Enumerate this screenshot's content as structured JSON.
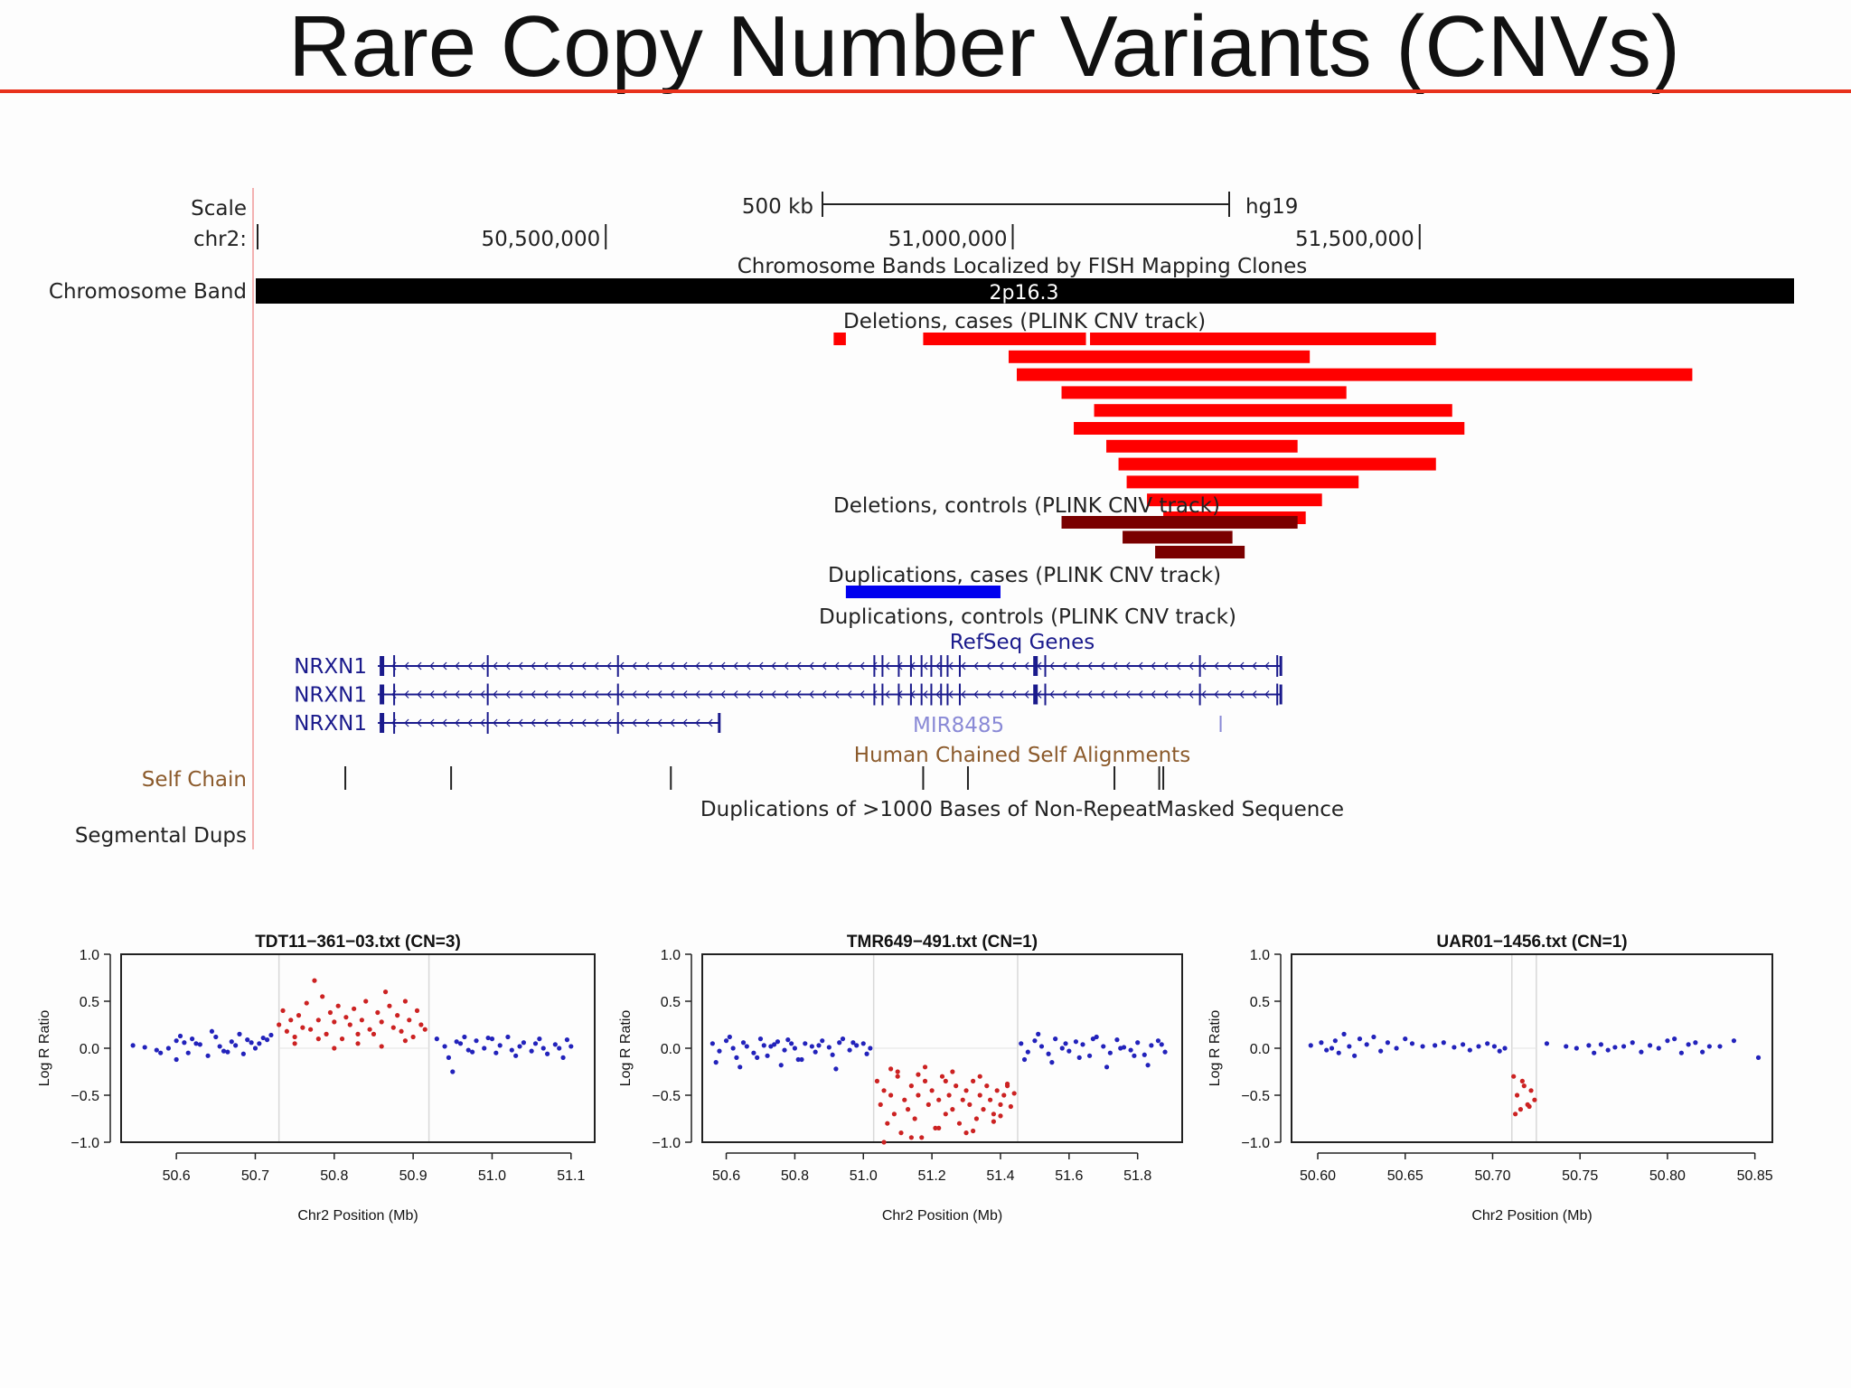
{
  "slide": {
    "title": "Rare Copy Number Variants (CNVs)",
    "accent_color": "#e8321c"
  },
  "genome_browser": {
    "assembly": "hg19",
    "scale_label": "Scale",
    "scale_bar_label": "500 kb",
    "chrom_label": "chr2:",
    "positions": [
      "50,500,000",
      "51,000,000",
      "51,500,000"
    ],
    "view_start_bp": 50070000,
    "view_end_bp": 51960000,
    "tracks": {
      "bands": {
        "side_label": "Chromosome Band",
        "title": "Chromosome Bands Localized by FISH Mapping Clones",
        "band_name": "2p16.3",
        "color": "#000000"
      },
      "del_cases": {
        "title": "Deletions, cases (PLINK CNV track)",
        "color": "#ff0000",
        "intervals_bp": [
          [
            50780000,
            50795000
          ],
          [
            50890000,
            51090000
          ],
          [
            51095000,
            51520000
          ],
          [
            50995000,
            51365000
          ],
          [
            51005000,
            51835000
          ],
          [
            51060000,
            51410000
          ],
          [
            51100000,
            51540000
          ],
          [
            51075000,
            51555000
          ],
          [
            51115000,
            51350000
          ],
          [
            51130000,
            51520000
          ],
          [
            51140000,
            51425000
          ],
          [
            51165000,
            51380000
          ],
          [
            51185000,
            51360000
          ]
        ]
      },
      "del_controls": {
        "title": "Deletions, controls (PLINK CNV track)",
        "color": "#7a0000",
        "intervals_bp": [
          [
            51060000,
            51350000
          ],
          [
            51135000,
            51270000
          ],
          [
            51175000,
            51285000
          ]
        ]
      },
      "dup_cases": {
        "title": "Duplications, cases (PLINK CNV track)",
        "color": "#0000ee",
        "intervals_bp": [
          [
            50795000,
            50985000
          ]
        ]
      },
      "dup_controls": {
        "title": "Duplications, controls (PLINK CNV track)"
      },
      "refseq": {
        "title": "RefSeq Genes",
        "color": "#1a1a8c",
        "genes": [
          {
            "name": "NRXN1",
            "start_bp": 50220000,
            "end_bp": 51330000
          },
          {
            "name": "NRXN1",
            "start_bp": 50220000,
            "end_bp": 51330000
          },
          {
            "name": "NRXN1",
            "start_bp": 50220000,
            "end_bp": 50640000
          }
        ],
        "mirna": {
          "name": "MIR8485",
          "position_bp": 51130000,
          "color": "#8a8ad6"
        }
      },
      "self_chain": {
        "side_label": "Self Chain",
        "title": "Human Chained Self Alignments",
        "color": "#8b5a2b",
        "positions_bp": [
          50180000,
          50310000,
          50580000,
          50890000,
          50945000,
          51125000,
          51180000,
          51185000
        ]
      },
      "seg_dups": {
        "side_label": "Segmental Dups",
        "title": "Duplications of >1000 Bases of Non-RepeatMasked Sequence"
      }
    }
  },
  "chart_data": [
    {
      "type": "scatter",
      "title": "TDT11−361−03.txt (CN=3)",
      "xlabel": "Chr2 Position (Mb)",
      "ylabel": "Log R Ratio",
      "xlim": [
        50.53,
        51.13
      ],
      "ylim": [
        -1.0,
        1.0
      ],
      "xticks": [
        "50.6",
        "50.7",
        "50.8",
        "50.9",
        "51.0",
        "51.1"
      ],
      "yticks": [
        "1.0",
        "0.5",
        "0.0",
        "−0.5",
        "−1.0"
      ],
      "cnv_region": [
        50.73,
        50.92
      ],
      "series": [
        {
          "color": "#2222bb",
          "x": [
            50.545,
            50.56,
            50.575,
            50.59,
            50.6,
            50.61,
            50.615,
            50.62,
            50.63,
            50.64,
            50.65,
            50.655,
            50.66,
            50.67,
            50.68,
            50.685,
            50.69,
            50.7,
            50.705,
            50.71,
            50.72,
            50.6,
            50.625,
            50.645,
            50.675,
            50.695,
            50.715,
            50.58,
            50.605,
            50.665,
            50.93,
            50.94,
            50.945,
            50.95,
            50.96,
            50.965,
            50.97,
            50.98,
            50.99,
            51.0,
            51.005,
            51.01,
            51.02,
            51.03,
            51.035,
            51.04,
            51.05,
            51.06,
            51.065,
            51.07,
            51.08,
            51.09,
            51.095,
            51.1,
            50.955,
            50.975,
            50.995,
            51.025,
            51.055,
            51.085
          ],
          "y": [
            0.03,
            0.01,
            -0.02,
            0.0,
            0.08,
            0.06,
            -0.05,
            0.1,
            0.04,
            -0.08,
            0.12,
            0.02,
            -0.03,
            0.07,
            0.15,
            -0.06,
            0.09,
            0.0,
            0.05,
            0.11,
            0.14,
            -0.12,
            0.05,
            0.18,
            0.03,
            0.06,
            0.09,
            -0.05,
            0.13,
            -0.04,
            0.1,
            0.02,
            -0.1,
            -0.25,
            0.05,
            0.12,
            -0.02,
            0.08,
            0.0,
            0.1,
            -0.05,
            0.03,
            0.12,
            -0.08,
            0.02,
            0.06,
            -0.03,
            0.1,
            0.0,
            -0.06,
            0.04,
            -0.1,
            0.09,
            0.02,
            0.07,
            -0.04,
            0.11,
            -0.02,
            0.05,
            0.0
          ]
        },
        {
          "color": "#cc2222",
          "x": [
            50.73,
            50.735,
            50.74,
            50.745,
            50.75,
            50.755,
            50.76,
            50.765,
            50.77,
            50.775,
            50.78,
            50.785,
            50.79,
            50.795,
            50.8,
            50.805,
            50.81,
            50.815,
            50.82,
            50.825,
            50.83,
            50.835,
            50.84,
            50.845,
            50.85,
            50.855,
            50.86,
            50.865,
            50.87,
            50.875,
            50.88,
            50.885,
            50.89,
            50.895,
            50.9,
            50.905,
            50.91,
            50.915,
            50.75,
            50.78,
            50.8,
            50.83,
            50.86,
            50.89
          ],
          "y": [
            0.25,
            0.4,
            0.18,
            0.3,
            0.12,
            0.35,
            0.22,
            0.48,
            0.2,
            0.72,
            0.3,
            0.55,
            0.15,
            0.38,
            0.28,
            0.45,
            0.1,
            0.33,
            0.25,
            0.42,
            0.05,
            0.3,
            0.5,
            0.2,
            0.15,
            0.38,
            0.28,
            0.6,
            0.45,
            0.22,
            0.35,
            0.18,
            0.5,
            0.3,
            0.12,
            0.4,
            0.25,
            0.2,
            0.05,
            0.1,
            0.0,
            0.15,
            0.02,
            0.08
          ]
        }
      ]
    },
    {
      "type": "scatter",
      "title": "TMR649−491.txt (CN=1)",
      "xlabel": "Chr2 Position (Mb)",
      "ylabel": "Log R Ratio",
      "xlim": [
        50.53,
        51.93
      ],
      "ylim": [
        -1.0,
        1.0
      ],
      "xticks": [
        "50.6",
        "50.8",
        "51.0",
        "51.2",
        "51.4",
        "51.6",
        "51.8"
      ],
      "yticks": [
        "1.0",
        "0.5",
        "0.0",
        "−0.5",
        "−1.0"
      ],
      "cnv_region": [
        51.03,
        51.45
      ],
      "series": [
        {
          "color": "#2222bb",
          "x": [
            50.56,
            50.58,
            50.6,
            50.62,
            50.63,
            50.65,
            50.66,
            50.68,
            50.7,
            50.71,
            50.72,
            50.74,
            50.75,
            50.77,
            50.78,
            50.8,
            50.81,
            50.83,
            50.85,
            50.86,
            50.88,
            50.9,
            50.91,
            50.93,
            50.94,
            50.96,
            50.98,
            51.0,
            51.01,
            51.02,
            50.57,
            50.61,
            50.64,
            50.69,
            50.73,
            50.76,
            50.79,
            50.82,
            50.87,
            50.92,
            50.97,
            51.46,
            51.48,
            51.5,
            51.52,
            51.54,
            51.56,
            51.58,
            51.6,
            51.62,
            51.64,
            51.66,
            51.68,
            51.7,
            51.72,
            51.74,
            51.76,
            51.78,
            51.8,
            51.82,
            51.84,
            51.86,
            51.88,
            51.47,
            51.51,
            51.55,
            51.59,
            51.63,
            51.67,
            51.71,
            51.75,
            51.79,
            51.83,
            51.87
          ],
          "y": [
            0.05,
            -0.03,
            0.08,
            0.0,
            -0.1,
            0.06,
            0.02,
            -0.05,
            0.1,
            0.03,
            -0.08,
            0.04,
            0.07,
            -0.02,
            0.09,
            0.0,
            -0.12,
            0.05,
            0.02,
            -0.04,
            0.08,
            0.01,
            -0.07,
            0.06,
            0.1,
            -0.02,
            0.03,
            0.05,
            -0.06,
            0.0,
            -0.15,
            0.12,
            -0.2,
            -0.1,
            0.02,
            -0.18,
            0.05,
            -0.12,
            0.03,
            -0.22,
            0.06,
            0.05,
            -0.04,
            0.08,
            0.02,
            -0.06,
            0.1,
            0.0,
            -0.03,
            0.07,
            0.04,
            -0.08,
            0.12,
            0.02,
            -0.05,
            0.09,
            0.01,
            -0.02,
            0.06,
            -0.07,
            0.03,
            0.08,
            -0.04,
            -0.12,
            0.15,
            -0.15,
            0.05,
            -0.1,
            0.1,
            -0.2,
            0.0,
            -0.08,
            -0.18,
            0.04
          ]
        },
        {
          "color": "#cc2222",
          "x": [
            51.04,
            51.05,
            51.06,
            51.07,
            51.08,
            51.09,
            51.1,
            51.11,
            51.12,
            51.13,
            51.14,
            51.15,
            51.16,
            51.17,
            51.18,
            51.19,
            51.2,
            51.21,
            51.22,
            51.23,
            51.24,
            51.25,
            51.26,
            51.27,
            51.28,
            51.29,
            51.3,
            51.31,
            51.32,
            51.33,
            51.34,
            51.35,
            51.36,
            51.37,
            51.38,
            51.39,
            51.4,
            51.41,
            51.42,
            51.43,
            51.44,
            51.06,
            51.1,
            51.14,
            51.18,
            51.22,
            51.26,
            51.3,
            51.34,
            51.38,
            51.42,
            51.08,
            51.16,
            51.24,
            51.32,
            51.4
          ],
          "y": [
            -0.35,
            -0.6,
            -0.45,
            -0.8,
            -0.5,
            -0.7,
            -0.3,
            -0.9,
            -0.55,
            -0.65,
            -0.4,
            -0.75,
            -0.5,
            -0.95,
            -0.35,
            -0.6,
            -0.45,
            -0.85,
            -0.55,
            -0.3,
            -0.7,
            -0.5,
            -0.65,
            -0.4,
            -0.8,
            -0.55,
            -0.45,
            -0.6,
            -0.35,
            -0.75,
            -0.5,
            -0.65,
            -0.4,
            -0.55,
            -0.7,
            -0.45,
            -0.6,
            -0.5,
            -0.38,
            -0.62,
            -0.48,
            -1.0,
            -0.25,
            -0.95,
            -0.2,
            -0.85,
            -0.25,
            -0.9,
            -0.3,
            -0.78,
            -0.4,
            -0.22,
            -0.28,
            -0.35,
            -0.88,
            -0.72
          ]
        }
      ]
    },
    {
      "type": "scatter",
      "title": "UAR01−1456.txt (CN=1)",
      "xlabel": "Chr2 Position (Mb)",
      "ylabel": "Log R Ratio",
      "xlim": [
        50.585,
        50.86
      ],
      "ylim": [
        -1.0,
        1.0
      ],
      "xticks": [
        "50.60",
        "50.65",
        "50.70",
        "50.75",
        "50.80",
        "50.85"
      ],
      "yticks": [
        "1.0",
        "0.5",
        "0.0",
        "−0.5",
        "−1.0"
      ],
      "cnv_region": [
        50.711,
        50.725
      ],
      "series": [
        {
          "color": "#2222bb",
          "x": [
            50.596,
            50.602,
            50.605,
            50.608,
            50.61,
            50.612,
            50.615,
            50.618,
            50.621,
            50.624,
            50.628,
            50.632,
            50.636,
            50.64,
            50.645,
            50.65,
            50.654,
            50.66,
            50.667,
            50.672,
            50.678,
            50.683,
            50.687,
            50.692,
            50.697,
            50.701,
            50.704,
            50.707,
            50.731,
            50.742,
            50.748,
            50.755,
            50.758,
            50.762,
            50.766,
            50.77,
            50.775,
            50.78,
            50.785,
            50.79,
            50.795,
            50.8,
            50.804,
            50.808,
            50.812,
            50.816,
            50.82,
            50.824,
            50.83,
            50.838,
            50.852
          ],
          "y": [
            0.03,
            0.06,
            -0.02,
            0.0,
            0.08,
            -0.05,
            0.15,
            0.02,
            -0.08,
            0.1,
            0.04,
            0.12,
            -0.03,
            0.06,
            0.0,
            0.1,
            0.05,
            0.02,
            0.03,
            0.06,
            0.01,
            0.04,
            -0.02,
            0.02,
            0.05,
            0.02,
            -0.03,
            0.0,
            0.05,
            0.02,
            0.0,
            0.03,
            -0.05,
            0.04,
            -0.02,
            0.01,
            0.02,
            0.06,
            -0.04,
            0.03,
            0.0,
            0.08,
            0.1,
            -0.05,
            0.04,
            0.06,
            -0.04,
            0.02,
            0.02,
            0.08,
            -0.1
          ]
        },
        {
          "color": "#cc2222",
          "x": [
            50.712,
            50.714,
            50.716,
            50.718,
            50.72,
            50.722,
            50.724,
            50.713,
            50.717,
            50.721
          ],
          "y": [
            -0.3,
            -0.5,
            -0.65,
            -0.4,
            -0.6,
            -0.45,
            -0.55,
            -0.7,
            -0.35,
            -0.62
          ]
        }
      ]
    }
  ]
}
